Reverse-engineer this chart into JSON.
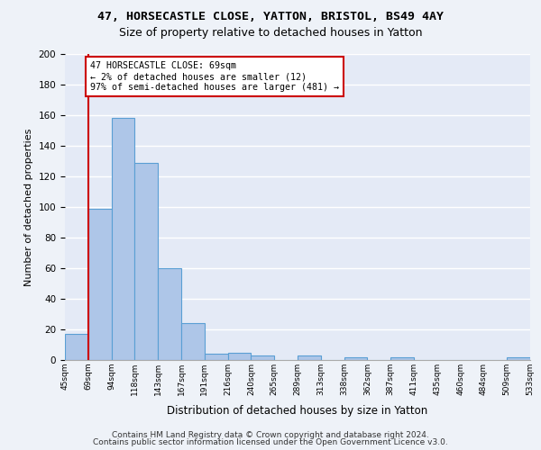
{
  "title_line1": "47, HORSECASTLE CLOSE, YATTON, BRISTOL, BS49 4AY",
  "title_line2": "Size of property relative to detached houses in Yatton",
  "xlabel": "Distribution of detached houses by size in Yatton",
  "ylabel": "Number of detached properties",
  "footer_line1": "Contains HM Land Registry data © Crown copyright and database right 2024.",
  "footer_line2": "Contains public sector information licensed under the Open Government Licence v3.0.",
  "annotation_line1": "47 HORSECASTLE CLOSE: 69sqm",
  "annotation_line2": "← 2% of detached houses are smaller (12)",
  "annotation_line3": "97% of semi-detached houses are larger (481) →",
  "tick_labels": [
    "45sqm",
    "69sqm",
    "94sqm",
    "118sqm",
    "143sqm",
    "167sqm",
    "191sqm",
    "216sqm",
    "240sqm",
    "265sqm",
    "289sqm",
    "313sqm",
    "338sqm",
    "362sqm",
    "387sqm",
    "411sqm",
    "435sqm",
    "460sqm",
    "484sqm",
    "509sqm",
    "533sqm"
  ],
  "values": [
    17,
    99,
    158,
    129,
    60,
    24,
    4,
    5,
    3,
    0,
    3,
    0,
    2,
    0,
    2,
    0,
    0,
    0,
    0,
    2
  ],
  "bar_color": "#aec6e8",
  "bar_edge_color": "#5a9fd4",
  "redline_color": "#cc0000",
  "box_color": "#cc0000",
  "ylim": [
    0,
    200
  ],
  "yticks": [
    0,
    20,
    40,
    60,
    80,
    100,
    120,
    140,
    160,
    180,
    200
  ],
  "bg_color": "#eef2f8",
  "plot_bg_color": "#e4eaf6"
}
